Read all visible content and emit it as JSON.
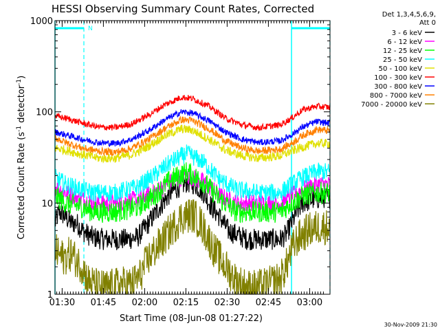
{
  "chart_data": {
    "type": "line",
    "title": "HESSI Observing Summary Count Rates, Corrected",
    "xlabel": "Start Time (08-Jun-08 01:27:22)",
    "ylabel_main": "Corrected Count Rate (s",
    "ylabel_sup1": "-1",
    "ylabel_mid": " detector",
    "ylabel_sup2": "-1",
    "ylabel_end": ")",
    "x_unit": "minutes after 01:27:22",
    "x_range": [
      0,
      100
    ],
    "ylim": [
      1,
      1000
    ],
    "yscale": "log",
    "x_ticks": [
      {
        "label": "01:30",
        "x": 2.6
      },
      {
        "label": "01:45",
        "x": 17.6
      },
      {
        "label": "02:00",
        "x": 32.6
      },
      {
        "label": "02:15",
        "x": 47.6
      },
      {
        "label": "02:30",
        "x": 62.6
      },
      {
        "label": "02:45",
        "x": 77.6
      },
      {
        "label": "03:00",
        "x": 92.6
      }
    ],
    "y_ticks": [
      {
        "label": "1",
        "y": 1
      },
      {
        "label": "10",
        "y": 10
      },
      {
        "label": "100",
        "y": 100
      },
      {
        "label": "1000",
        "y": 1000
      }
    ],
    "legend_header": [
      "Det 1,3,4,5,6,9,",
      "Att 0"
    ],
    "legend_position": "right",
    "night_marker_label": "N",
    "night_intervals": [
      [
        0,
        10.5
      ],
      [
        86,
        100
      ]
    ],
    "series": [
      {
        "name": "3 - 6 keV",
        "color": "#000000",
        "noise": 0.12,
        "points": [
          [
            0,
            6
          ],
          [
            1.5,
            8
          ],
          [
            4,
            7
          ],
          [
            6,
            6
          ],
          [
            8,
            6
          ],
          [
            10,
            5
          ],
          [
            12,
            4.5
          ],
          [
            14,
            4.2
          ],
          [
            18,
            4
          ],
          [
            22,
            4
          ],
          [
            26,
            4
          ],
          [
            30,
            4.2
          ],
          [
            34,
            6
          ],
          [
            38,
            9
          ],
          [
            42,
            13
          ],
          [
            45,
            15
          ],
          [
            48,
            17
          ],
          [
            51,
            16
          ],
          [
            54,
            13
          ],
          [
            57,
            9
          ],
          [
            60,
            7
          ],
          [
            63,
            5
          ],
          [
            66,
            4.5
          ],
          [
            70,
            4
          ],
          [
            74,
            4
          ],
          [
            78,
            4
          ],
          [
            82,
            4
          ],
          [
            84,
            4.5
          ],
          [
            86,
            6
          ],
          [
            88,
            8
          ],
          [
            90,
            10
          ],
          [
            94,
            11
          ],
          [
            98,
            11.5
          ],
          [
            100,
            11.5
          ]
        ]
      },
      {
        "name": "6 - 12 keV",
        "color": "#ff00ff",
        "noise": 0.1,
        "points": [
          [
            0,
            15
          ],
          [
            4,
            13
          ],
          [
            10,
            11
          ],
          [
            14,
            10
          ],
          [
            22,
            10
          ],
          [
            30,
            11
          ],
          [
            36,
            13
          ],
          [
            42,
            17
          ],
          [
            48,
            20
          ],
          [
            54,
            17
          ],
          [
            60,
            12
          ],
          [
            66,
            10
          ],
          [
            74,
            10
          ],
          [
            82,
            10
          ],
          [
            86,
            12
          ],
          [
            90,
            14
          ],
          [
            95,
            16
          ],
          [
            100,
            16
          ]
        ]
      },
      {
        "name": "12 - 25 keV",
        "color": "#00ff00",
        "noise": 0.12,
        "points": [
          [
            0,
            12
          ],
          [
            4,
            10
          ],
          [
            10,
            9
          ],
          [
            14,
            8
          ],
          [
            22,
            8
          ],
          [
            30,
            9
          ],
          [
            36,
            12
          ],
          [
            42,
            18
          ],
          [
            48,
            22
          ],
          [
            54,
            17
          ],
          [
            60,
            11
          ],
          [
            66,
            8
          ],
          [
            74,
            8
          ],
          [
            82,
            8
          ],
          [
            86,
            10
          ],
          [
            90,
            12
          ],
          [
            95,
            13
          ],
          [
            100,
            13
          ]
        ]
      },
      {
        "name": "25 - 50 keV",
        "color": "#00ffff",
        "noise": 0.1,
        "points": [
          [
            0,
            19
          ],
          [
            4,
            16
          ],
          [
            10,
            14
          ],
          [
            14,
            13
          ],
          [
            22,
            13
          ],
          [
            30,
            15
          ],
          [
            36,
            20
          ],
          [
            42,
            28
          ],
          [
            48,
            35
          ],
          [
            54,
            28
          ],
          [
            60,
            18
          ],
          [
            66,
            14
          ],
          [
            74,
            13
          ],
          [
            82,
            13
          ],
          [
            86,
            16
          ],
          [
            90,
            19
          ],
          [
            95,
            22
          ],
          [
            100,
            22
          ]
        ]
      },
      {
        "name": "50 - 100 keV",
        "color": "#e0e000",
        "noise": 0.05,
        "points": [
          [
            0,
            40
          ],
          [
            4,
            38
          ],
          [
            10,
            34
          ],
          [
            16,
            31
          ],
          [
            22,
            31
          ],
          [
            28,
            34
          ],
          [
            34,
            42
          ],
          [
            40,
            55
          ],
          [
            46,
            65
          ],
          [
            50,
            63
          ],
          [
            56,
            50
          ],
          [
            62,
            38
          ],
          [
            68,
            33
          ],
          [
            74,
            31
          ],
          [
            82,
            33
          ],
          [
            86,
            37
          ],
          [
            90,
            41
          ],
          [
            95,
            45
          ],
          [
            100,
            45
          ]
        ]
      },
      {
        "name": "100 - 300 keV",
        "color": "#ff0000",
        "noise": 0.035,
        "points": [
          [
            0,
            90
          ],
          [
            4,
            85
          ],
          [
            10,
            75
          ],
          [
            16,
            68
          ],
          [
            22,
            67
          ],
          [
            28,
            74
          ],
          [
            34,
            92
          ],
          [
            40,
            120
          ],
          [
            46,
            145
          ],
          [
            50,
            140
          ],
          [
            56,
            115
          ],
          [
            62,
            85
          ],
          [
            68,
            72
          ],
          [
            74,
            67
          ],
          [
            82,
            72
          ],
          [
            86,
            85
          ],
          [
            90,
            105
          ],
          [
            95,
            115
          ],
          [
            100,
            112
          ]
        ]
      },
      {
        "name": "300 - 800 keV",
        "color": "#0000ff",
        "noise": 0.035,
        "points": [
          [
            0,
            60
          ],
          [
            4,
            56
          ],
          [
            10,
            50
          ],
          [
            16,
            46
          ],
          [
            22,
            45
          ],
          [
            28,
            50
          ],
          [
            34,
            62
          ],
          [
            40,
            82
          ],
          [
            46,
            100
          ],
          [
            50,
            97
          ],
          [
            56,
            80
          ],
          [
            62,
            60
          ],
          [
            68,
            50
          ],
          [
            74,
            46
          ],
          [
            82,
            48
          ],
          [
            86,
            56
          ],
          [
            90,
            68
          ],
          [
            95,
            78
          ],
          [
            100,
            75
          ]
        ]
      },
      {
        "name": "800 - 7000 keV",
        "color": "#ff8000",
        "noise": 0.04,
        "points": [
          [
            0,
            52
          ],
          [
            4,
            46
          ],
          [
            10,
            40
          ],
          [
            16,
            37
          ],
          [
            22,
            36
          ],
          [
            28,
            40
          ],
          [
            34,
            50
          ],
          [
            40,
            66
          ],
          [
            46,
            82
          ],
          [
            50,
            80
          ],
          [
            56,
            65
          ],
          [
            62,
            48
          ],
          [
            68,
            40
          ],
          [
            74,
            37
          ],
          [
            82,
            39
          ],
          [
            86,
            45
          ],
          [
            90,
            55
          ],
          [
            95,
            64
          ],
          [
            100,
            62
          ]
        ]
      },
      {
        "name": "7000 - 20000 keV",
        "color": "#808000",
        "noise": 0.2,
        "points": [
          [
            0,
            3
          ],
          [
            3,
            2.5
          ],
          [
            6,
            2.8
          ],
          [
            8,
            2.3
          ],
          [
            10,
            2
          ],
          [
            12,
            1.4
          ],
          [
            16,
            1.2
          ],
          [
            20,
            1.2
          ],
          [
            24,
            1.3
          ],
          [
            28,
            1.3
          ],
          [
            31,
            1.6
          ],
          [
            34,
            2.5
          ],
          [
            38,
            3.5
          ],
          [
            42,
            5
          ],
          [
            46,
            7
          ],
          [
            50,
            7.5
          ],
          [
            53,
            6
          ],
          [
            56,
            4
          ],
          [
            58,
            3
          ],
          [
            62,
            2
          ],
          [
            66,
            1.4
          ],
          [
            70,
            1.2
          ],
          [
            74,
            1.2
          ],
          [
            78,
            1.3
          ],
          [
            82,
            1.5
          ],
          [
            84,
            2
          ],
          [
            86,
            3
          ],
          [
            88,
            4
          ],
          [
            92,
            5
          ],
          [
            96,
            5.5
          ],
          [
            100,
            5.5
          ]
        ]
      }
    ]
  },
  "footer_timestamp": "30-Nov-2009 21:30"
}
